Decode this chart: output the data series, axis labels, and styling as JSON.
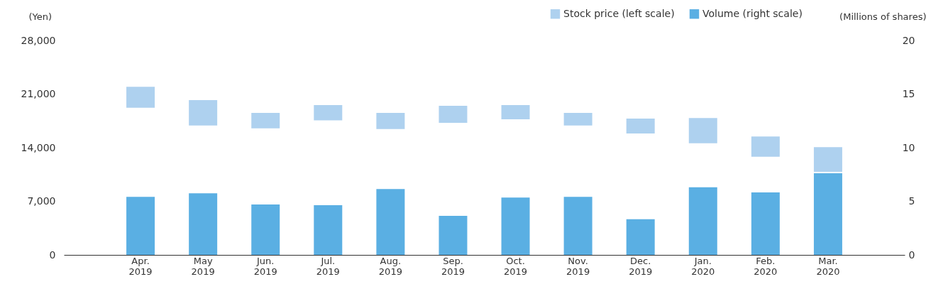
{
  "chart_data": {
    "type": "bar",
    "categories": [
      "Apr. 2019",
      "May 2019",
      "Jun. 2019",
      "Jul. 2019",
      "Aug. 2019",
      "Sep. 2019",
      "Oct. 2019",
      "Nov. 2019",
      "Dec. 2019",
      "Jan. 2020",
      "Feb. 2020",
      "Mar. 2020"
    ],
    "ylabel": "(Yen)",
    "y2label": "(Millions of shares)",
    "series": [
      {
        "name": "Stock price (left scale)",
        "color": "#aed1ef",
        "axis": "y",
        "base": [
          19210,
          16890,
          16530,
          17560,
          16430,
          17250,
          17720,
          16890,
          15860,
          14570,
          12820,
          10840
        ],
        "values": [
          2750,
          3320,
          2020,
          2010,
          2120,
          2230,
          1850,
          1660,
          1930,
          3310,
          2650,
          3240
        ]
      },
      {
        "name": "Volume (right scale)",
        "color": "#5aafe3",
        "axis": "y2",
        "values": [
          5.42,
          5.75,
          4.71,
          4.64,
          6.15,
          3.65,
          5.35,
          5.42,
          3.32,
          6.3,
          5.82,
          7.62
        ]
      }
    ],
    "ylim": [
      0,
      28000
    ],
    "yticks": [
      0,
      {
        "value": 7000,
        "label": "7,000"
      },
      {
        "value": 14000,
        "label": "14,000"
      },
      {
        "value": 21000,
        "label": "21,000"
      },
      {
        "value": 28000,
        "label": "28,000"
      }
    ],
    "y2lim": [
      0,
      20
    ],
    "y2ticks": [
      0,
      5,
      10,
      15,
      20
    ],
    "grid": false,
    "legend": "top right"
  }
}
